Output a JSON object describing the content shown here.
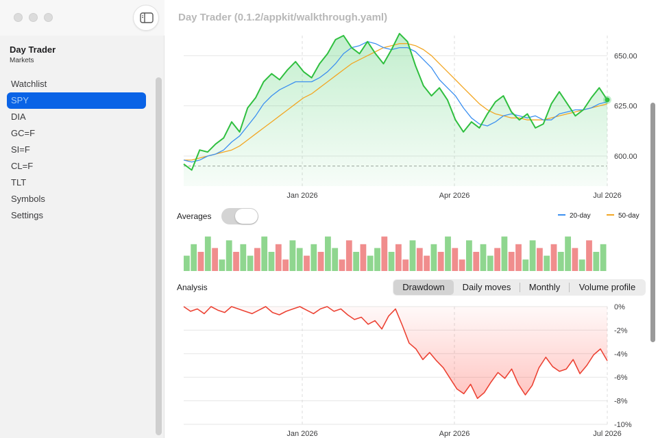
{
  "window": {
    "title": "Day Trader (0.1.2/appkit/walkthrough.yaml)"
  },
  "sidebar": {
    "app_name": "Day Trader",
    "subtitle": "Markets",
    "items": [
      {
        "label": "Watchlist",
        "active": false
      },
      {
        "label": "SPY",
        "active": true
      },
      {
        "label": "DIA",
        "active": false
      },
      {
        "label": "GC=F",
        "active": false
      },
      {
        "label": "SI=F",
        "active": false
      },
      {
        "label": "CL=F",
        "active": false
      },
      {
        "label": "TLT",
        "active": false
      },
      {
        "label": "Symbols",
        "active": false
      },
      {
        "label": "Settings",
        "active": false
      }
    ]
  },
  "controls": {
    "averages_label": "Averages",
    "averages_on": false
  },
  "legend": [
    {
      "label": "20-day",
      "color": "#3b8ff0"
    },
    {
      "label": "50-day",
      "color": "#f2a623"
    }
  ],
  "analysis": {
    "label": "Analysis",
    "tabs": [
      "Drawdown",
      "Daily moves",
      "Monthly",
      "Volume profile"
    ],
    "selected": "Drawdown"
  },
  "colors": {
    "accent": "#0a63e6",
    "price_line": "#2fbf3f",
    "drawdown_line": "#ec4233",
    "volume_up": "#8fd68f",
    "volume_down": "#f08d8d"
  },
  "chart_data": [
    {
      "type": "line",
      "name": "price",
      "x_ticks": [
        "Jan 2026",
        "Apr 2026",
        "Jul 2026"
      ],
      "y_ticks": [
        "650.00",
        "625.00",
        "600.00"
      ],
      "ylim": [
        585,
        660
      ],
      "reference_line": 595,
      "series": [
        {
          "values": [
            596,
            593,
            603,
            602,
            606,
            609,
            617,
            612,
            624,
            629,
            637,
            641,
            638,
            643,
            647,
            642,
            639,
            646,
            651,
            658,
            660,
            654,
            651,
            657,
            651,
            646,
            653,
            661,
            657,
            645,
            635,
            630,
            634,
            628,
            618,
            612,
            617,
            614,
            621,
            627,
            630,
            622,
            618,
            621,
            614,
            616,
            626,
            632,
            626,
            620,
            623,
            629,
            634,
            628
          ]
        },
        {
          "values": [
            598,
            597,
            598,
            600,
            601,
            603,
            607,
            610,
            615,
            620,
            626,
            630,
            633,
            635,
            637,
            637,
            637,
            639,
            642,
            646,
            651,
            654,
            655,
            657,
            656,
            654,
            653,
            654,
            654,
            652,
            648,
            644,
            638,
            634,
            630,
            624,
            619,
            616,
            615,
            617,
            620,
            621,
            620,
            619,
            620,
            618,
            618,
            621,
            622,
            623,
            623,
            624,
            626,
            627
          ]
        },
        {
          "values": [
            598,
            598,
            599,
            600,
            601,
            602,
            603,
            605,
            608,
            611,
            614,
            617,
            620,
            623,
            626,
            629,
            631,
            634,
            637,
            640,
            643,
            646,
            648,
            650,
            652,
            654,
            655,
            656,
            656,
            655,
            653,
            650,
            646,
            642,
            638,
            634,
            630,
            626,
            623,
            621,
            620,
            619,
            619,
            618,
            618,
            618,
            619,
            620,
            621,
            622,
            623,
            624,
            625,
            626
          ]
        }
      ]
    },
    {
      "type": "bar",
      "name": "volume",
      "values": [
        0.4,
        0.7,
        0.5,
        0.9,
        0.6,
        0.3,
        0.8,
        0.5,
        0.7,
        0.4,
        0.6,
        0.9,
        0.5,
        0.7,
        0.3,
        0.8,
        0.6,
        0.4,
        0.7,
        0.5,
        0.9,
        0.6,
        0.3,
        0.8,
        0.5,
        0.7,
        0.4,
        0.6,
        0.9,
        0.5,
        0.7,
        0.3,
        0.8,
        0.6,
        0.4,
        0.7,
        0.5,
        0.9,
        0.6,
        0.3,
        0.8,
        0.5,
        0.7,
        0.4,
        0.6,
        0.9,
        0.5,
        0.7,
        0.3,
        0.8,
        0.6,
        0.4,
        0.7,
        0.5,
        0.9,
        0.6,
        0.3,
        0.8,
        0.5,
        0.7
      ],
      "up": [
        1,
        1,
        0,
        1,
        0,
        1,
        1,
        0,
        1,
        1,
        0,
        1,
        1,
        0,
        0,
        1,
        1,
        0,
        1,
        0,
        1,
        1,
        0,
        0,
        1,
        0,
        1,
        1,
        0,
        1,
        0,
        0,
        1,
        0,
        0,
        1,
        0,
        1,
        0,
        0,
        1,
        0,
        1,
        1,
        0,
        1,
        0,
        0,
        1,
        1,
        0,
        1,
        0,
        1,
        1,
        0,
        1,
        0,
        1,
        1
      ]
    },
    {
      "type": "area",
      "name": "drawdown",
      "x_ticks": [
        "Jan 2026",
        "Apr 2026",
        "Jul 2026"
      ],
      "y_ticks": [
        "0%",
        "-2%",
        "-4%",
        "-6%",
        "-8%",
        "-10%"
      ],
      "ylim": [
        -10,
        0
      ],
      "values": [
        0,
        -0.4,
        -0.2,
        -0.6,
        0,
        -0.3,
        -0.5,
        0,
        -0.2,
        -0.4,
        -0.6,
        -0.3,
        0,
        -0.5,
        -0.7,
        -0.4,
        -0.2,
        0,
        -0.3,
        -0.6,
        -0.2,
        0,
        -0.4,
        -0.2,
        -0.7,
        -1.1,
        -0.9,
        -1.5,
        -1.2,
        -1.9,
        -0.8,
        -0.2,
        -1.6,
        -3.1,
        -3.6,
        -4.5,
        -3.9,
        -4.6,
        -5.2,
        -6.1,
        -7.0,
        -7.4,
        -6.6,
        -7.8,
        -7.3,
        -6.4,
        -5.6,
        -6.1,
        -5.3,
        -6.6,
        -7.5,
        -6.7,
        -5.2,
        -4.3,
        -5.1,
        -5.5,
        -5.3,
        -4.5,
        -5.7,
        -5.0,
        -4.1,
        -3.6,
        -4.6
      ]
    }
  ]
}
